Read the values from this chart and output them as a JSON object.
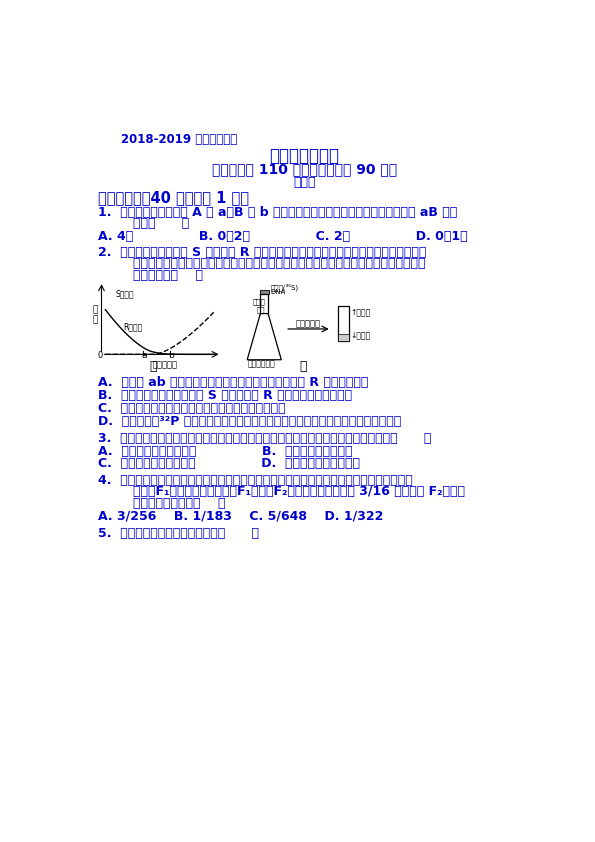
{
  "bg_color": "#ffffff",
  "text_color": "#0000cc",
  "header_line": "2018-2019 学年度下学期",
  "title": "生物半期测试卷",
  "subtitle": "（测试时间 110 分钟，试卷总分 90 分）",
  "subtitle2": "出题人",
  "section1": "一、单选题（40 个，每个 1 分）",
  "q1_line1": "1.  一个初级精母细胞有 A 与 a，B 与 b 两对同源染色体，则它所形成的配子中，含 aB 的配",
  "q1_line2": "        子有（      ）",
  "q1_options": "A. 4个               B. 0或2个               C. 2个               D. 0或1个",
  "q2_line1": "2.  图甲是将加热杀死的 S 型细菌与 R 型活菌混合注射到小鼠体内后两种细菌的含量变化，",
  "q2_line2": "        图乙是利用同位素标记技术完成噬菌体侵染细菌实验的部分操作步骤。下列相关叙述中，",
  "q2_wrong": "        不正确的是（    ）",
  "q2a": "A.  甲图中 ab 时间段内，小鼠体内还没形成大量的免疫 R 型细菌的抗体",
  "q2b": "B.  图甲中，后期出现的大量 S 型细菌是由 R 型细菌转化并增殖而来",
  "q2c": "C.  图乙离心管中新形成的子代噬菌体完全没有放射性",
  "q2d": "D.  图乙中若用³²P 标记亲代噬菌体，出现上清液放射性偏高一定是保温时间过短导致",
  "q3": "3.  在减数分裂过程中，含有与体细胞相同的染色体数目，但不含同源染色体的时期是（      ）",
  "q3_options_a": "A.  减数第一次分裂的后期               B.  减数第一次分裂间期",
  "q3_options_c": "C.  减数第二次分裂的后期               D.  减数分裂的四分体时期",
  "q4_line1": "4.  控制南瓜扁盘形和球状的基因分别位于两对同源染色体上，白色扁状南瓜与黄色球状南瓜",
  "q4_line2": "        杂交，F₁全为白色扁状南瓜，F₁自交，F₂中含白色球状南瓜有 3/16 概率，则 F₂中纯合",
  "q4_line3": "        的黄色扁状南瓜有（    ）",
  "q4_options": "A. 3/256    B. 1/183    C. 5/648    D. 1/322",
  "q5": "5.  下列不符合右图所示含义的是（      ）"
}
